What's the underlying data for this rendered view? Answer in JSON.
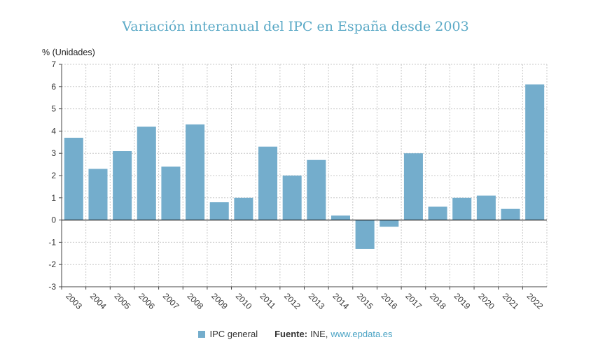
{
  "chart_data": {
    "type": "bar",
    "title": "Variación interanual del IPC en España desde 2003",
    "ylabel": "% (Unidades)",
    "xlabel": "",
    "ylim": [
      -3,
      7
    ],
    "yticks": [
      7,
      6,
      5,
      4,
      3,
      2,
      1,
      0,
      -1,
      -2,
      -3
    ],
    "grid": true,
    "categories": [
      "2003",
      "2004",
      "2005",
      "2006",
      "2007",
      "2008",
      "2009",
      "2010",
      "2011",
      "2012",
      "2013",
      "2014",
      "2015",
      "2016",
      "2017",
      "2018",
      "2019",
      "2020",
      "2021",
      "2022"
    ],
    "series": [
      {
        "name": "IPC general",
        "color": "#74adcc",
        "values": [
          3.7,
          2.3,
          3.1,
          4.2,
          2.4,
          4.3,
          0.8,
          1.0,
          3.3,
          2.0,
          2.7,
          0.2,
          -1.3,
          -0.3,
          3.0,
          0.6,
          1.0,
          1.1,
          0.5,
          6.1
        ]
      }
    ],
    "legend_position": "bottom",
    "source_label": "Fuente:",
    "source_text": "INE,",
    "source_link": "www.epdata.es"
  }
}
